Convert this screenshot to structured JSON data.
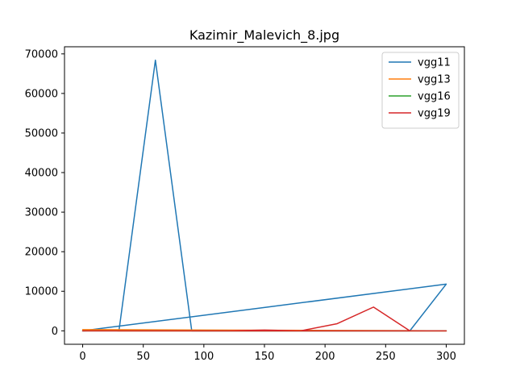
{
  "chart_data": {
    "type": "line",
    "title": "Kazimir_Malevich_8.jpg",
    "xlabel": "",
    "ylabel": "",
    "xlim": [
      -15,
      315
    ],
    "ylim": [
      -3400,
      71800
    ],
    "xticks": [
      0,
      50,
      100,
      150,
      200,
      250,
      300
    ],
    "yticks": [
      0,
      10000,
      20000,
      30000,
      40000,
      50000,
      60000,
      70000
    ],
    "grid": false,
    "legend_position": "top-right",
    "series": [
      {
        "name": "vgg11",
        "color": "#1f77b4",
        "points": [
          [
            0,
            0
          ],
          [
            300,
            11800
          ],
          [
            0,
            0
          ],
          [
            30,
            150
          ],
          [
            60,
            68400
          ],
          [
            90,
            0
          ],
          [
            120,
            0
          ],
          [
            150,
            0
          ],
          [
            180,
            0
          ],
          [
            210,
            0
          ],
          [
            240,
            0
          ],
          [
            270,
            0
          ],
          [
            300,
            11800
          ]
        ]
      },
      {
        "name": "vgg13",
        "color": "#ff7f0e",
        "points": [
          [
            0,
            300
          ],
          [
            300,
            0
          ],
          [
            0,
            300
          ],
          [
            30,
            0
          ],
          [
            60,
            0
          ],
          [
            90,
            0
          ],
          [
            120,
            0
          ],
          [
            150,
            0
          ],
          [
            180,
            0
          ],
          [
            210,
            0
          ],
          [
            240,
            0
          ],
          [
            270,
            0
          ],
          [
            300,
            0
          ]
        ]
      },
      {
        "name": "vgg16",
        "color": "#2ca02c",
        "points": [
          [
            0,
            0
          ],
          [
            300,
            0
          ],
          [
            0,
            0
          ],
          [
            30,
            0
          ],
          [
            60,
            0
          ],
          [
            90,
            0
          ],
          [
            120,
            0
          ],
          [
            150,
            0
          ],
          [
            180,
            0
          ],
          [
            210,
            0
          ],
          [
            240,
            0
          ],
          [
            270,
            0
          ],
          [
            300,
            0
          ]
        ]
      },
      {
        "name": "vgg19",
        "color": "#d62728",
        "points": [
          [
            0,
            0
          ],
          [
            300,
            0
          ],
          [
            0,
            0
          ],
          [
            30,
            0
          ],
          [
            60,
            0
          ],
          [
            90,
            0
          ],
          [
            120,
            0
          ],
          [
            150,
            200
          ],
          [
            180,
            0
          ],
          [
            210,
            1800
          ],
          [
            240,
            6000
          ],
          [
            270,
            0
          ],
          [
            300,
            0
          ]
        ]
      }
    ]
  }
}
